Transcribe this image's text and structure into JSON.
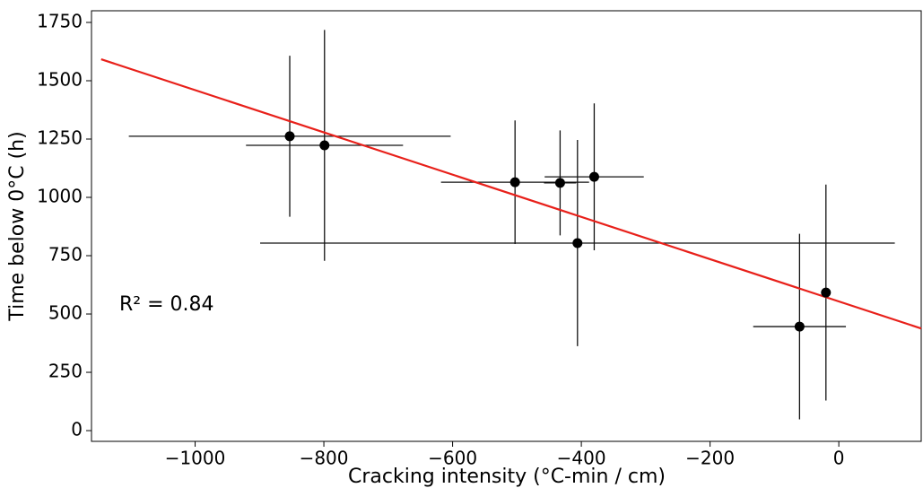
{
  "chart_data": {
    "type": "scatter",
    "xlabel": "Cracking intensity (°C-min / cm)",
    "ylabel": "Time below 0°C (h)",
    "annotation": "R² = 0.84",
    "series": [
      {
        "color": "#000000",
        "x": [
          -853,
          -799,
          -503,
          -433,
          -406,
          -380,
          -61,
          -20
        ],
        "values": [
          1262,
          1223,
          1065,
          1062,
          804,
          1088,
          446,
          592
        ],
        "xerr": [
          250,
          122,
          115,
          25,
          493,
          77,
          72,
          null
        ],
        "yerr": [
          345,
          495,
          265,
          225,
          442,
          315,
          398,
          463
        ]
      }
    ],
    "fit": {
      "color": "#e8201a",
      "x": [
        -1146,
        128
      ],
      "values": [
        1592,
        438
      ]
    },
    "xlim": [
      -1161,
      128
    ],
    "ylim": [
      -46,
      1800
    ],
    "xticks": [
      {
        "value": -1000,
        "label": "−1000"
      },
      {
        "value": -800,
        "label": "−800"
      },
      {
        "value": -600,
        "label": "−600"
      },
      {
        "value": -400,
        "label": "−400"
      },
      {
        "value": -200,
        "label": "−200"
      },
      0
    ],
    "yticks": [
      0,
      250,
      500,
      750,
      1000,
      1250,
      1500,
      1750
    ]
  }
}
